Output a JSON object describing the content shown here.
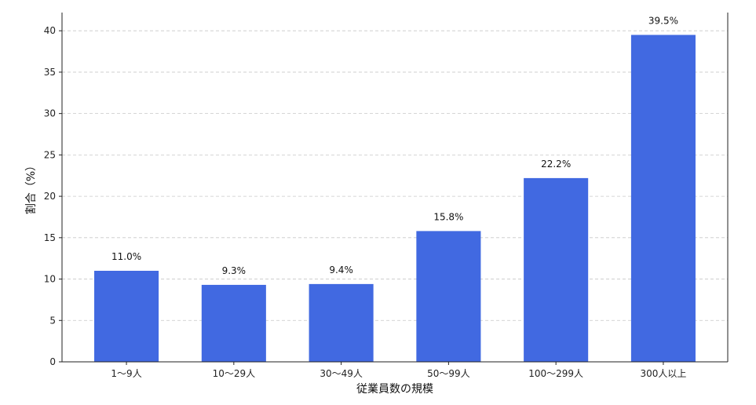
{
  "chart_data": {
    "type": "bar",
    "title": "",
    "xlabel": "従業員数の規模",
    "ylabel": "割合（%）",
    "categories": [
      "1〜9人",
      "10〜29人",
      "30〜49人",
      "50〜99人",
      "100〜299人",
      "300人以上"
    ],
    "values": [
      11.0,
      9.3,
      9.4,
      15.8,
      22.2,
      39.5
    ],
    "value_labels": [
      "11.0%",
      "9.3%",
      "9.4%",
      "15.8%",
      "22.2%",
      "39.5%"
    ],
    "ylim": [
      0,
      42.2
    ],
    "yticks": [
      0,
      5,
      10,
      15,
      20,
      25,
      30,
      35,
      40
    ],
    "ytick_labels": [
      "0",
      "5",
      "10",
      "15",
      "20",
      "25",
      "30",
      "35",
      "40"
    ],
    "grid": "horizontal dashed",
    "bar_color": "#4169e1"
  }
}
